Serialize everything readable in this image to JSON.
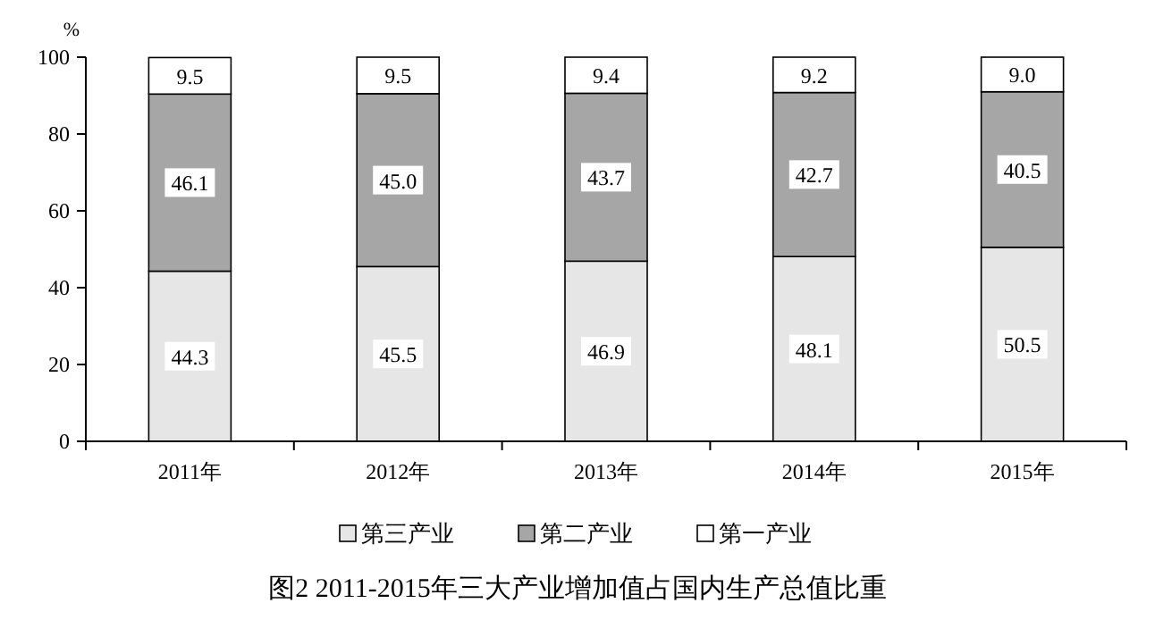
{
  "chart_data": {
    "type": "bar",
    "stacked": true,
    "title": "图2  2011-2015年三大产业增加值占国内生产总值比重",
    "ylabel": "%",
    "categories": [
      "2011年",
      "2012年",
      "2013年",
      "2014年",
      "2015年"
    ],
    "series": [
      {
        "name": "第三产业",
        "color": "#e6e6e6",
        "values": [
          44.3,
          45.5,
          46.9,
          48.1,
          50.5
        ],
        "value_labels": [
          "44.3",
          "45.5",
          "46.9",
          "48.1",
          "50.5"
        ]
      },
      {
        "name": "第二产业",
        "color": "#a6a6a6",
        "values": [
          46.1,
          45.0,
          43.7,
          42.7,
          40.5
        ],
        "value_labels": [
          "46.1",
          "45.0",
          "43.7",
          "42.7",
          "40.5"
        ]
      },
      {
        "name": "第一产业",
        "color": "#ffffff",
        "values": [
          9.5,
          9.5,
          9.4,
          9.2,
          9.0
        ],
        "value_labels": [
          "9.5",
          "9.5",
          "9.4",
          "9.2",
          "9.0"
        ]
      }
    ],
    "ylim": [
      0,
      100
    ],
    "yticks": [
      0,
      20,
      40,
      60,
      80,
      100
    ],
    "legend": "bottom"
  }
}
